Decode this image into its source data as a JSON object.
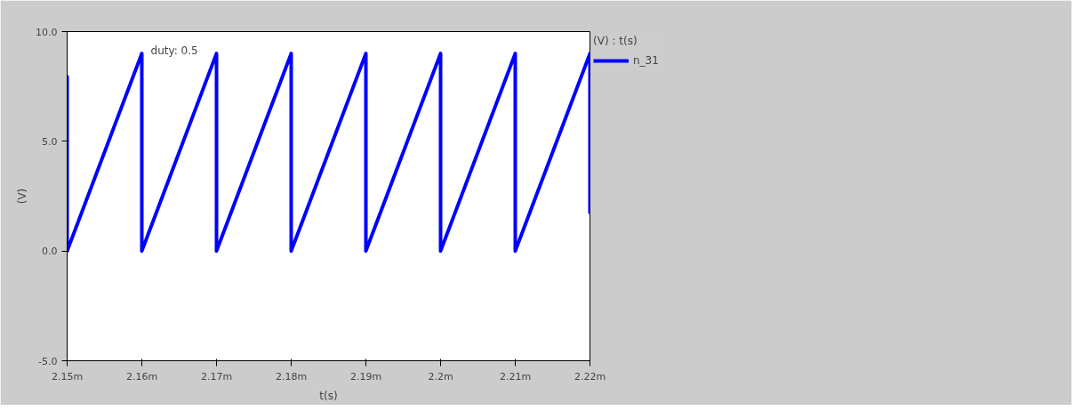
{
  "chart_data": {
    "type": "line",
    "xlabel": "t(s)",
    "ylabel": "(V)",
    "legend_title": "(V) : t(s)",
    "xlim": [
      2.15,
      2.22
    ],
    "ylim": [
      -5.0,
      10.0
    ],
    "xticks": [
      {
        "value": 2.15,
        "label": "2.15m"
      },
      {
        "value": 2.16,
        "label": "2.16m"
      },
      {
        "value": 2.17,
        "label": "2.17m"
      },
      {
        "value": 2.18,
        "label": "2.18m"
      },
      {
        "value": 2.19,
        "label": "2.19m"
      },
      {
        "value": 2.2,
        "label": "2.2m"
      },
      {
        "value": 2.21,
        "label": "2.21m"
      },
      {
        "value": 2.22,
        "label": "2.22m"
      }
    ],
    "yticks": [
      {
        "value": -5,
        "label": "-5.0"
      },
      {
        "value": 0,
        "label": "0.0"
      },
      {
        "value": 5,
        "label": "5.0"
      },
      {
        "value": 10,
        "label": "10.0"
      }
    ],
    "grid": false,
    "legend": "top right",
    "marker": "none",
    "line_style": "solid",
    "annotations": [
      "duty: 0.5"
    ],
    "series": [
      {
        "name": "n_31",
        "color": "#0000ff",
        "x": [
          2.15,
          2.15,
          2.16,
          2.16,
          2.16,
          2.17,
          2.17,
          2.17,
          2.18,
          2.18,
          2.18,
          2.19,
          2.19,
          2.19,
          2.2,
          2.2,
          2.2,
          2.21,
          2.21,
          2.21,
          2.22,
          2.22,
          2.22
        ],
        "values": [
          8.0,
          0.0,
          9.0,
          8.3,
          0.0,
          9.0,
          8.3,
          0.0,
          9.0,
          8.3,
          0.0,
          9.0,
          8.3,
          0.0,
          9.0,
          8.3,
          0.0,
          9.0,
          8.3,
          0.0,
          9.0,
          8.3,
          1.7
        ]
      }
    ]
  }
}
